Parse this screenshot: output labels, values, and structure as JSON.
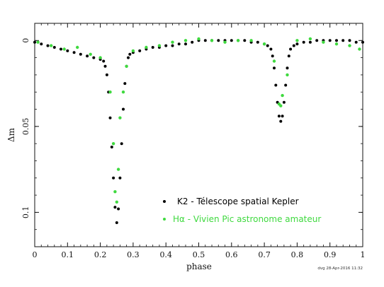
{
  "chart_data": {
    "type": "scatter",
    "title": "",
    "xlabel": "phase",
    "ylabel": "Δm",
    "xlim": [
      0,
      1
    ],
    "ylim": [
      -0.01,
      0.12
    ],
    "y_inverted": true,
    "x_ticks": [
      0,
      0.1,
      0.2,
      0.3,
      0.4,
      0.5,
      0.6,
      0.7,
      0.8,
      0.9,
      1
    ],
    "x_tick_labels": [
      "0",
      "0.1",
      "0.2",
      "0.3",
      "0.4",
      "0.5",
      "0.6",
      "0.7",
      "0.8",
      "0.9",
      "1"
    ],
    "y_ticks": [
      0,
      0.05,
      0.1
    ],
    "y_tick_labels": [
      "0",
      "0.05",
      "0.1"
    ],
    "grid": false,
    "legend_position": "bottom-right",
    "credit": "dvg 28-Apr-2016 11:32",
    "series": [
      {
        "name": "K2 - Télescope spatial Kepler",
        "color": "#000000",
        "marker": "dot",
        "x": [
          0.0,
          0.02,
          0.04,
          0.06,
          0.08,
          0.1,
          0.12,
          0.14,
          0.16,
          0.18,
          0.2,
          0.21,
          0.215,
          0.22,
          0.225,
          0.23,
          0.235,
          0.24,
          0.245,
          0.25,
          0.255,
          0.26,
          0.265,
          0.27,
          0.275,
          0.28,
          0.285,
          0.29,
          0.3,
          0.32,
          0.34,
          0.36,
          0.38,
          0.4,
          0.42,
          0.44,
          0.46,
          0.48,
          0.5,
          0.52,
          0.54,
          0.56,
          0.58,
          0.6,
          0.62,
          0.64,
          0.66,
          0.68,
          0.7,
          0.71,
          0.72,
          0.725,
          0.73,
          0.735,
          0.74,
          0.745,
          0.75,
          0.755,
          0.76,
          0.765,
          0.77,
          0.775,
          0.78,
          0.79,
          0.8,
          0.82,
          0.84,
          0.86,
          0.88,
          0.9,
          0.92,
          0.94,
          0.96,
          0.98,
          1.0
        ],
        "y": [
          0.001,
          0.002,
          0.003,
          0.004,
          0.005,
          0.006,
          0.007,
          0.008,
          0.009,
          0.01,
          0.011,
          0.012,
          0.015,
          0.02,
          0.03,
          0.045,
          0.062,
          0.08,
          0.097,
          0.106,
          0.098,
          0.08,
          0.06,
          0.04,
          0.025,
          0.015,
          0.01,
          0.008,
          0.007,
          0.006,
          0.005,
          0.004,
          0.004,
          0.003,
          0.003,
          0.002,
          0.002,
          0.001,
          0.0,
          0.0,
          0.0,
          0.0,
          0.0,
          0.0,
          0.0,
          0.0,
          0.001,
          0.001,
          0.002,
          0.003,
          0.005,
          0.009,
          0.016,
          0.026,
          0.036,
          0.044,
          0.047,
          0.044,
          0.036,
          0.026,
          0.016,
          0.009,
          0.005,
          0.003,
          0.002,
          0.001,
          0.001,
          0.0,
          0.0,
          0.0,
          0.0,
          0.0,
          0.0,
          0.001,
          0.001
        ]
      },
      {
        "name": "Hα - Vivien Pic astronome amateur",
        "color": "#3fd93f",
        "marker": "dot",
        "x": [
          0.01,
          0.05,
          0.09,
          0.13,
          0.17,
          0.2,
          0.23,
          0.24,
          0.245,
          0.25,
          0.255,
          0.26,
          0.27,
          0.28,
          0.3,
          0.34,
          0.38,
          0.42,
          0.46,
          0.5,
          0.54,
          0.58,
          0.62,
          0.66,
          0.7,
          0.73,
          0.745,
          0.75,
          0.755,
          0.77,
          0.8,
          0.84,
          0.88,
          0.92,
          0.96,
          0.99
        ],
        "y": [
          0.001,
          0.003,
          0.005,
          0.004,
          0.008,
          0.01,
          0.03,
          0.06,
          0.088,
          0.094,
          0.075,
          0.045,
          0.03,
          0.015,
          0.006,
          0.004,
          0.003,
          0.001,
          0.0,
          -0.001,
          0.0,
          0.001,
          0.0,
          0.0,
          0.002,
          0.012,
          0.037,
          0.038,
          0.032,
          0.02,
          0.0,
          -0.001,
          0.001,
          0.002,
          0.003,
          0.005
        ]
      }
    ]
  }
}
